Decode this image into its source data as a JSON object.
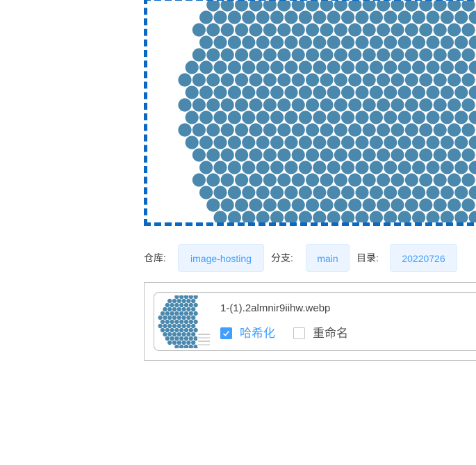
{
  "upload": {
    "preview_fill": "#4a88ad",
    "border_color": "#0a68c2"
  },
  "info": {
    "repo_label": "仓库:",
    "repo_value": "image-hosting",
    "branch_label": "分支:",
    "branch_value": "main",
    "dir_label": "目录:",
    "dir_value": "20220726"
  },
  "file": {
    "name": "1-(1).2almnir9iihw.webp",
    "hash_label": "哈希化",
    "hash_checked": true,
    "rename_label": "重命名",
    "rename_checked": false
  },
  "colors": {
    "accent": "#409eff",
    "tag_bg": "#ecf5ff"
  }
}
